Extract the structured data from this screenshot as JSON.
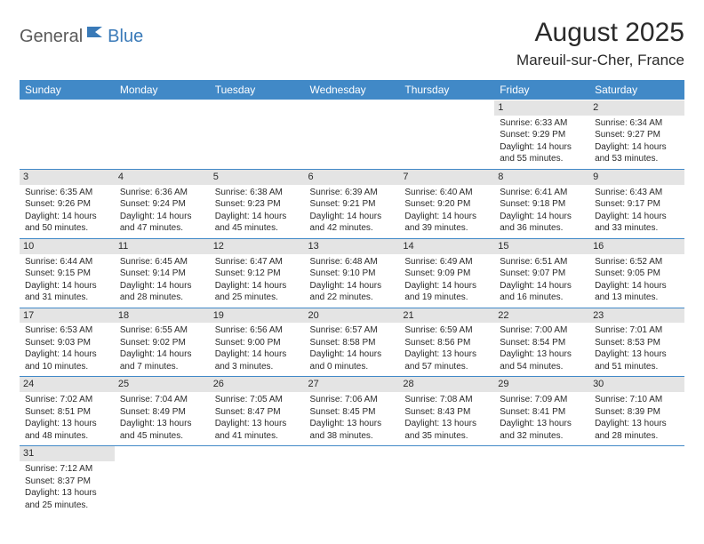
{
  "logo": {
    "text1": "General",
    "text2": "Blue"
  },
  "title": "August 2025",
  "location": "Mareuil-sur-Cher, France",
  "colors": {
    "header_bg": "#4189c7",
    "header_fg": "#ffffff",
    "daynum_bg": "#e4e4e4",
    "border": "#4189c7",
    "text": "#2a2a2a",
    "logo_gray": "#5a5a5a",
    "logo_blue": "#3a7ab8"
  },
  "week_headers": [
    "Sunday",
    "Monday",
    "Tuesday",
    "Wednesday",
    "Thursday",
    "Friday",
    "Saturday"
  ],
  "weeks": [
    [
      null,
      null,
      null,
      null,
      null,
      {
        "d": "1",
        "sr": "Sunrise: 6:33 AM",
        "ss": "Sunset: 9:29 PM",
        "dl1": "Daylight: 14 hours",
        "dl2": "and 55 minutes."
      },
      {
        "d": "2",
        "sr": "Sunrise: 6:34 AM",
        "ss": "Sunset: 9:27 PM",
        "dl1": "Daylight: 14 hours",
        "dl2": "and 53 minutes."
      }
    ],
    [
      {
        "d": "3",
        "sr": "Sunrise: 6:35 AM",
        "ss": "Sunset: 9:26 PM",
        "dl1": "Daylight: 14 hours",
        "dl2": "and 50 minutes."
      },
      {
        "d": "4",
        "sr": "Sunrise: 6:36 AM",
        "ss": "Sunset: 9:24 PM",
        "dl1": "Daylight: 14 hours",
        "dl2": "and 47 minutes."
      },
      {
        "d": "5",
        "sr": "Sunrise: 6:38 AM",
        "ss": "Sunset: 9:23 PM",
        "dl1": "Daylight: 14 hours",
        "dl2": "and 45 minutes."
      },
      {
        "d": "6",
        "sr": "Sunrise: 6:39 AM",
        "ss": "Sunset: 9:21 PM",
        "dl1": "Daylight: 14 hours",
        "dl2": "and 42 minutes."
      },
      {
        "d": "7",
        "sr": "Sunrise: 6:40 AM",
        "ss": "Sunset: 9:20 PM",
        "dl1": "Daylight: 14 hours",
        "dl2": "and 39 minutes."
      },
      {
        "d": "8",
        "sr": "Sunrise: 6:41 AM",
        "ss": "Sunset: 9:18 PM",
        "dl1": "Daylight: 14 hours",
        "dl2": "and 36 minutes."
      },
      {
        "d": "9",
        "sr": "Sunrise: 6:43 AM",
        "ss": "Sunset: 9:17 PM",
        "dl1": "Daylight: 14 hours",
        "dl2": "and 33 minutes."
      }
    ],
    [
      {
        "d": "10",
        "sr": "Sunrise: 6:44 AM",
        "ss": "Sunset: 9:15 PM",
        "dl1": "Daylight: 14 hours",
        "dl2": "and 31 minutes."
      },
      {
        "d": "11",
        "sr": "Sunrise: 6:45 AM",
        "ss": "Sunset: 9:14 PM",
        "dl1": "Daylight: 14 hours",
        "dl2": "and 28 minutes."
      },
      {
        "d": "12",
        "sr": "Sunrise: 6:47 AM",
        "ss": "Sunset: 9:12 PM",
        "dl1": "Daylight: 14 hours",
        "dl2": "and 25 minutes."
      },
      {
        "d": "13",
        "sr": "Sunrise: 6:48 AM",
        "ss": "Sunset: 9:10 PM",
        "dl1": "Daylight: 14 hours",
        "dl2": "and 22 minutes."
      },
      {
        "d": "14",
        "sr": "Sunrise: 6:49 AM",
        "ss": "Sunset: 9:09 PM",
        "dl1": "Daylight: 14 hours",
        "dl2": "and 19 minutes."
      },
      {
        "d": "15",
        "sr": "Sunrise: 6:51 AM",
        "ss": "Sunset: 9:07 PM",
        "dl1": "Daylight: 14 hours",
        "dl2": "and 16 minutes."
      },
      {
        "d": "16",
        "sr": "Sunrise: 6:52 AM",
        "ss": "Sunset: 9:05 PM",
        "dl1": "Daylight: 14 hours",
        "dl2": "and 13 minutes."
      }
    ],
    [
      {
        "d": "17",
        "sr": "Sunrise: 6:53 AM",
        "ss": "Sunset: 9:03 PM",
        "dl1": "Daylight: 14 hours",
        "dl2": "and 10 minutes."
      },
      {
        "d": "18",
        "sr": "Sunrise: 6:55 AM",
        "ss": "Sunset: 9:02 PM",
        "dl1": "Daylight: 14 hours",
        "dl2": "and 7 minutes."
      },
      {
        "d": "19",
        "sr": "Sunrise: 6:56 AM",
        "ss": "Sunset: 9:00 PM",
        "dl1": "Daylight: 14 hours",
        "dl2": "and 3 minutes."
      },
      {
        "d": "20",
        "sr": "Sunrise: 6:57 AM",
        "ss": "Sunset: 8:58 PM",
        "dl1": "Daylight: 14 hours",
        "dl2": "and 0 minutes."
      },
      {
        "d": "21",
        "sr": "Sunrise: 6:59 AM",
        "ss": "Sunset: 8:56 PM",
        "dl1": "Daylight: 13 hours",
        "dl2": "and 57 minutes."
      },
      {
        "d": "22",
        "sr": "Sunrise: 7:00 AM",
        "ss": "Sunset: 8:54 PM",
        "dl1": "Daylight: 13 hours",
        "dl2": "and 54 minutes."
      },
      {
        "d": "23",
        "sr": "Sunrise: 7:01 AM",
        "ss": "Sunset: 8:53 PM",
        "dl1": "Daylight: 13 hours",
        "dl2": "and 51 minutes."
      }
    ],
    [
      {
        "d": "24",
        "sr": "Sunrise: 7:02 AM",
        "ss": "Sunset: 8:51 PM",
        "dl1": "Daylight: 13 hours",
        "dl2": "and 48 minutes."
      },
      {
        "d": "25",
        "sr": "Sunrise: 7:04 AM",
        "ss": "Sunset: 8:49 PM",
        "dl1": "Daylight: 13 hours",
        "dl2": "and 45 minutes."
      },
      {
        "d": "26",
        "sr": "Sunrise: 7:05 AM",
        "ss": "Sunset: 8:47 PM",
        "dl1": "Daylight: 13 hours",
        "dl2": "and 41 minutes."
      },
      {
        "d": "27",
        "sr": "Sunrise: 7:06 AM",
        "ss": "Sunset: 8:45 PM",
        "dl1": "Daylight: 13 hours",
        "dl2": "and 38 minutes."
      },
      {
        "d": "28",
        "sr": "Sunrise: 7:08 AM",
        "ss": "Sunset: 8:43 PM",
        "dl1": "Daylight: 13 hours",
        "dl2": "and 35 minutes."
      },
      {
        "d": "29",
        "sr": "Sunrise: 7:09 AM",
        "ss": "Sunset: 8:41 PM",
        "dl1": "Daylight: 13 hours",
        "dl2": "and 32 minutes."
      },
      {
        "d": "30",
        "sr": "Sunrise: 7:10 AM",
        "ss": "Sunset: 8:39 PM",
        "dl1": "Daylight: 13 hours",
        "dl2": "and 28 minutes."
      }
    ],
    [
      {
        "d": "31",
        "sr": "Sunrise: 7:12 AM",
        "ss": "Sunset: 8:37 PM",
        "dl1": "Daylight: 13 hours",
        "dl2": "and 25 minutes."
      },
      null,
      null,
      null,
      null,
      null,
      null
    ]
  ]
}
